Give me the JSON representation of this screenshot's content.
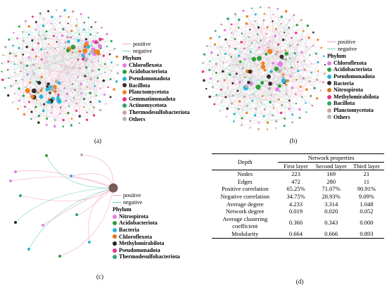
{
  "colors": {
    "positive": "#f4a6c0",
    "negative": "#6fd3b8",
    "Chloroflexota": "#e47ee6",
    "Acidobacteriota": "#2e9e37",
    "Pseudomonadota": "#26b6d9",
    "Bacillota": "#3b2b2b",
    "Planctomycetota": "#f08020",
    "Gemmatimonadota": "#e8328a",
    "Actinomycetota": "#2ea56a",
    "Thermodesulfobacteriota": "#c8a59e",
    "Others": "#b3b3b3",
    "Bacteria": "#1ea7c6",
    "Nitrospirota": "#e66f1b",
    "Methylomirabilota": "#222222"
  },
  "panel_a": {
    "caption": "(a)",
    "legend": {
      "positive": "positive",
      "negative": "negative",
      "title": "Phylum",
      "items": [
        {
          "label": "Chloroflexota",
          "color_key": "Chloroflexota"
        },
        {
          "label": "Acidobacteriota",
          "color_key": "Acidobacteriota"
        },
        {
          "label": "Pseudomonadota",
          "color_key": "Pseudomonadota"
        },
        {
          "label": "Bacillota",
          "color_key": "Bacillota"
        },
        {
          "label": "Planctomycetota",
          "color_key": "Planctomycetota"
        },
        {
          "label": "Gemmatimonadota",
          "color_key": "Gemmatimonadota"
        },
        {
          "label": "Actinomycetota",
          "color_key": "Actinomycetota"
        },
        {
          "label": "Thermodesulfobacteriota",
          "color_key": "Thermodesulfobacteriota"
        },
        {
          "label": "Others",
          "color_key": "Others"
        }
      ]
    }
  },
  "panel_b": {
    "caption": "(b)",
    "legend": {
      "positive": "positive",
      "negative": "negative",
      "title": "Phylum",
      "items": [
        {
          "label": "Chloroflexota",
          "color_key": "Chloroflexota"
        },
        {
          "label": "Acidobacteriota",
          "color_key": "Acidobacteriota"
        },
        {
          "label": "Pseudomonadota",
          "color_key": "Pseudomonadota"
        },
        {
          "label": "Bacteria",
          "color_key": "Bacillota"
        },
        {
          "label": "Nitrospirota",
          "color_key": "Nitrospirota"
        },
        {
          "label": "Methylomirabilota",
          "color_key": "Gemmatimonadota"
        },
        {
          "label": "Bacillota",
          "color_key": "Actinomycetota"
        },
        {
          "label": "Planctomycetota",
          "color_key": "Thermodesulfobacteriota"
        },
        {
          "label": "Others",
          "color_key": "Others"
        }
      ]
    }
  },
  "panel_c": {
    "caption": "(c)",
    "legend": {
      "positive": "positive",
      "negative": "negative",
      "title": "Phylum",
      "items": [
        {
          "label": "Nitrospirota",
          "color_key": "Chloroflexota"
        },
        {
          "label": "Acidobacteriota",
          "color_key": "Acidobacteriota"
        },
        {
          "label": "Bacteria",
          "color_key": "Pseudomonadota"
        },
        {
          "label": "Chloroflexota",
          "color_key": "Nitrospirota"
        },
        {
          "label": "Methylomirabilota",
          "color_key": "Methylomirabilota"
        },
        {
          "label": "Pseudomonadota",
          "color_key": "Gemmatimonadota"
        },
        {
          "label": "Thermodesulfobacteriota",
          "color_key": "Actinomycetota"
        }
      ]
    }
  },
  "panel_d": {
    "caption": "(d)",
    "table": {
      "group_header": "Network properties",
      "depth_header": "Depth",
      "columns": [
        "First layer",
        "Second layer",
        "Third layer"
      ],
      "rows": [
        {
          "label": "Nodes",
          "values": [
            "223",
            "169",
            "21"
          ]
        },
        {
          "label": "Edges",
          "values": [
            "472",
            "280",
            "11"
          ]
        },
        {
          "label": "Positive correlation",
          "values": [
            "65.25%",
            "71.07%",
            "90.91%"
          ]
        },
        {
          "label": "Negative correlation",
          "values": [
            "34.75%",
            "28.93%",
            "9.09%"
          ]
        },
        {
          "label": "Average degree",
          "values": [
            "4.233",
            "3.314",
            "1.048"
          ]
        },
        {
          "label": "Network degree",
          "values": [
            "0.019",
            "0.020",
            "0.052"
          ]
        },
        {
          "label": "Average clustering coefficient",
          "values": [
            "0.360",
            "0.343",
            "0.000"
          ]
        },
        {
          "label": "Modularity",
          "values": [
            "0.664",
            "0.666",
            "0.893"
          ]
        }
      ]
    }
  }
}
